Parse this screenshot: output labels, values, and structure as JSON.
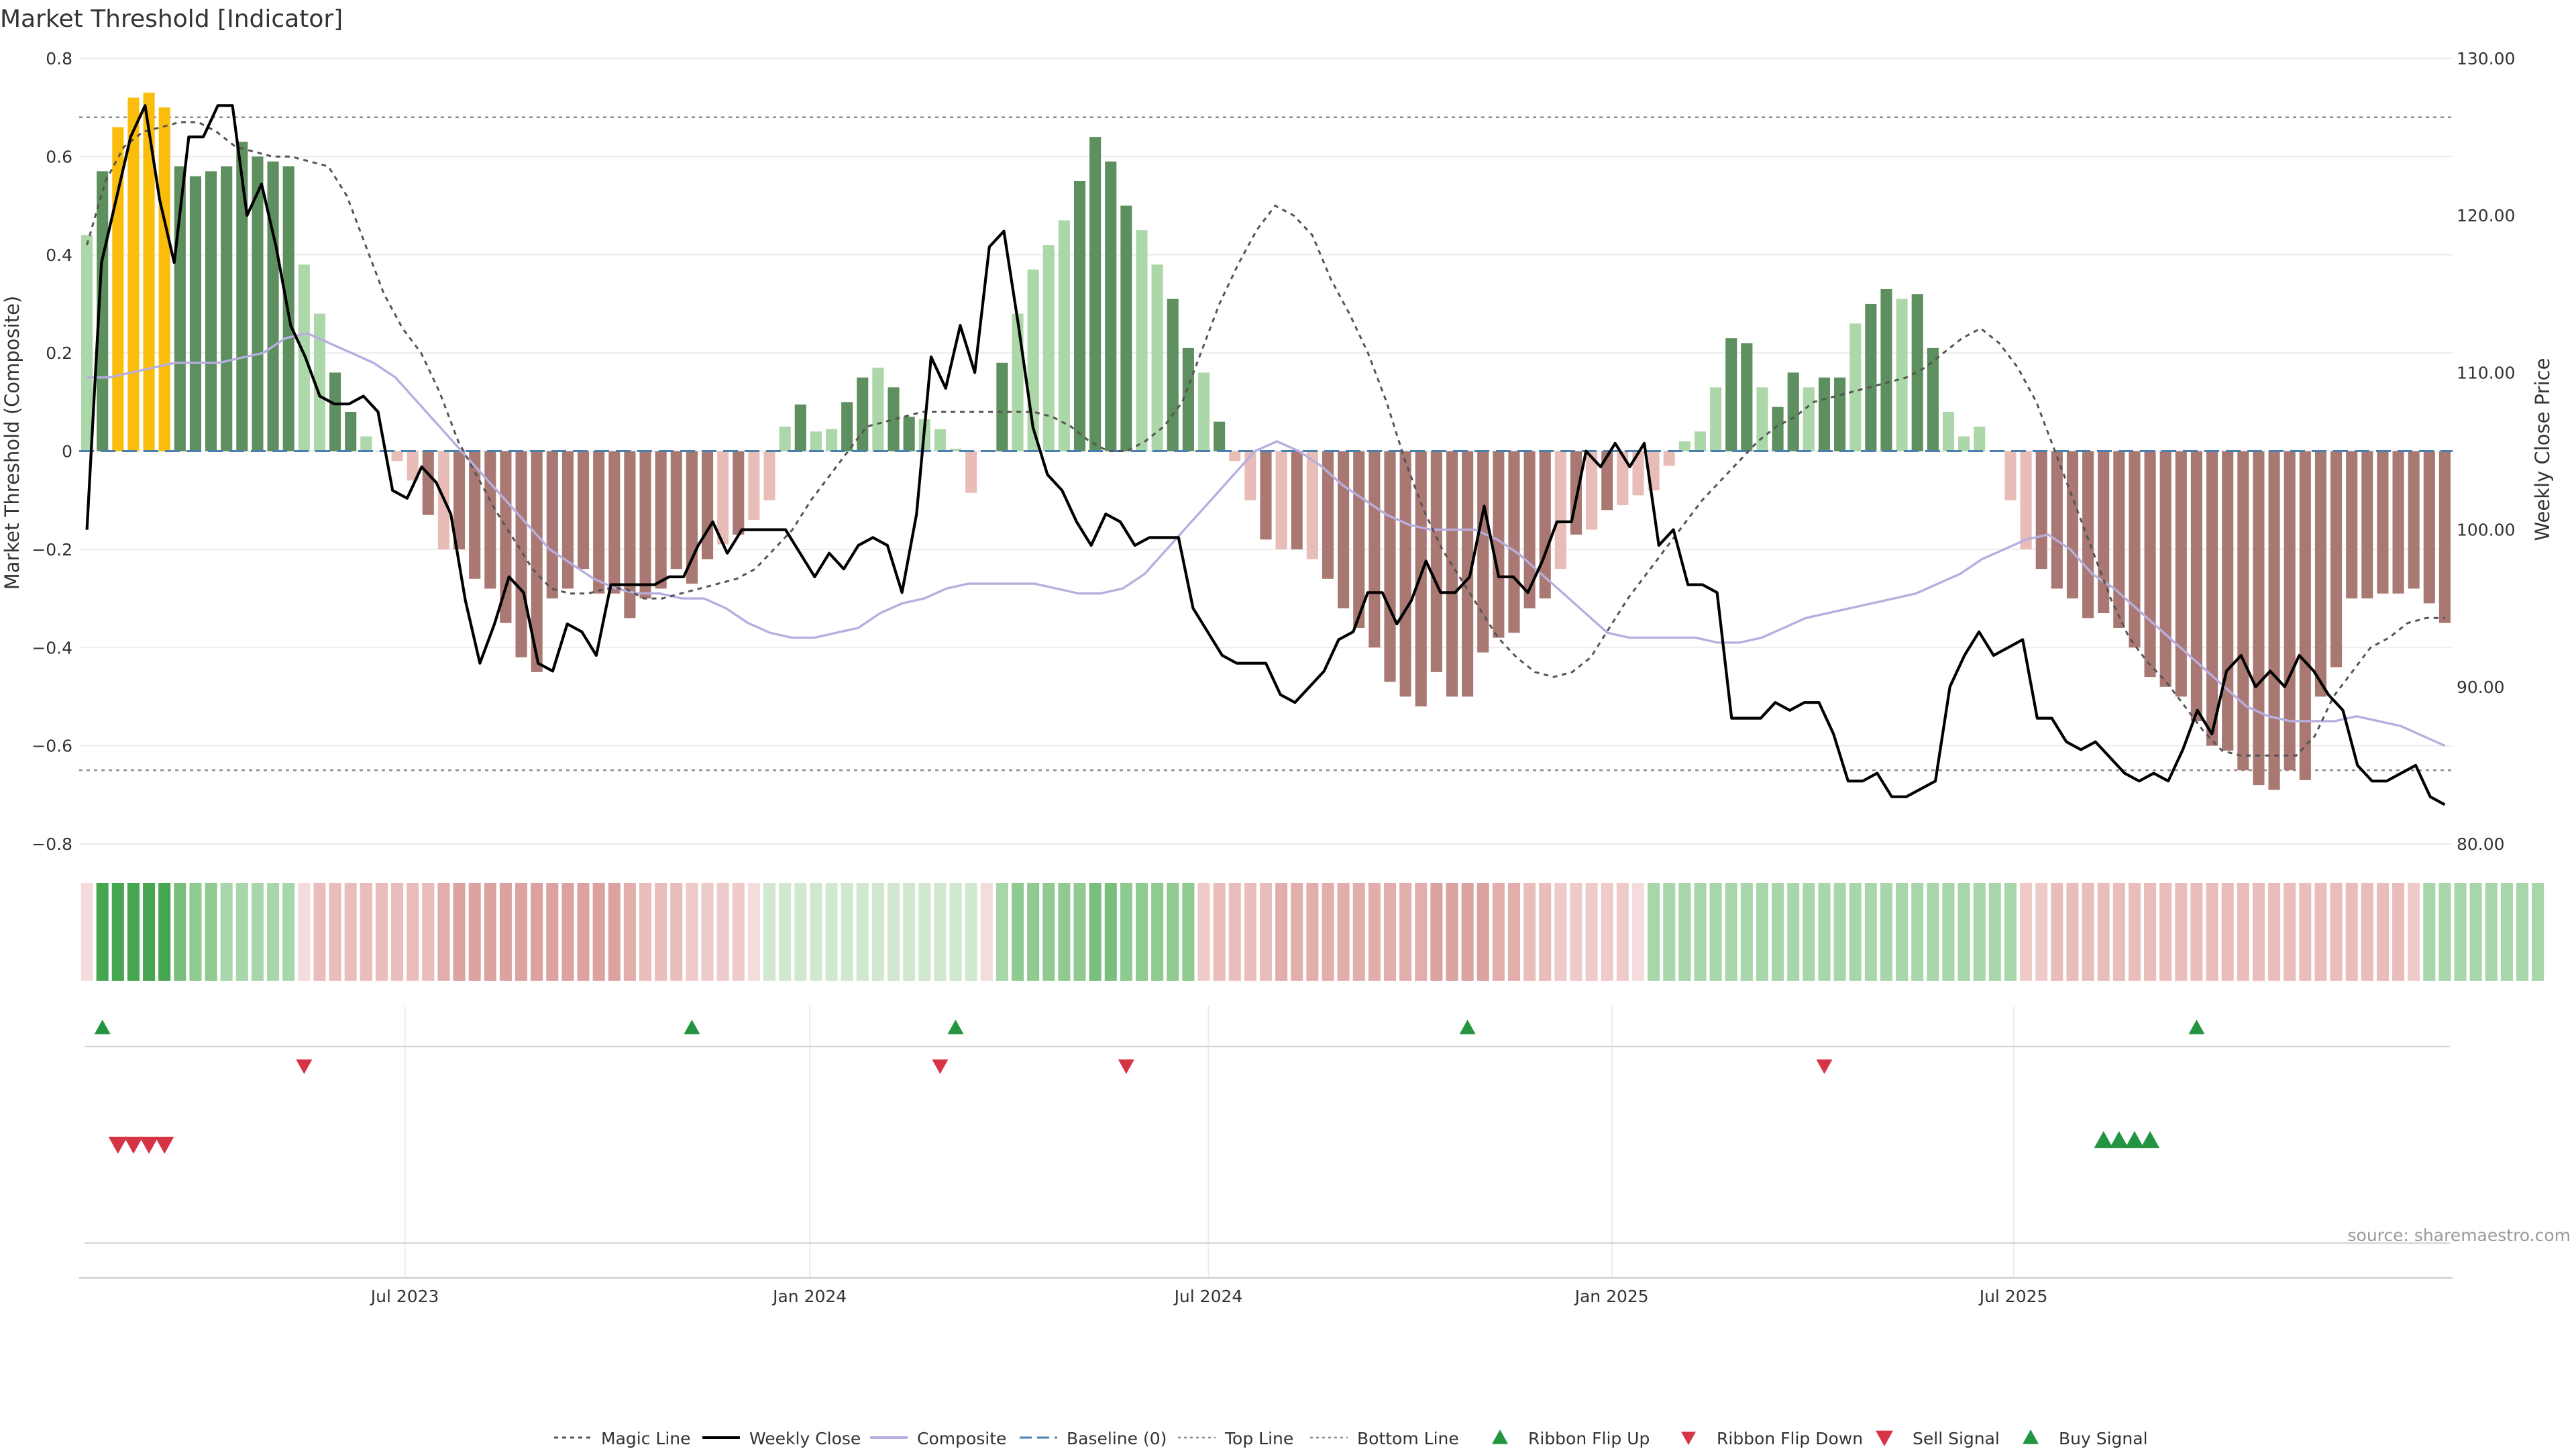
{
  "title": "Market Threshold [Indicator]",
  "source": "source: sharemaestro.com",
  "colors": {
    "bar_strong_pos": "#5e8f5e",
    "bar_weak_pos": "#acd7a8",
    "bar_strong_neg": "#a97873",
    "bar_weak_neg": "#e9bdb7",
    "bar_extreme": "#fbbd0c",
    "close": "#000000",
    "composite": "#b7aee0",
    "baseline": "#4a7fb0",
    "buy": "#23943f",
    "sell": "#d63345"
  },
  "chart_data": {
    "type": "bar+line",
    "title": "Market Threshold [Indicator]",
    "ylabel_left": "Market Threshold (Composite)",
    "ylabel_right": "Weekly Close Price",
    "ylim_left": [
      -0.8,
      0.8
    ],
    "ylim_right": [
      80,
      130
    ],
    "y_ticks_left": [
      "0.8",
      "0.6",
      "0.4",
      "0.2",
      "0",
      "−0.2",
      "−0.4",
      "−0.6",
      "−0.8"
    ],
    "y_ticks_right": [
      "130.00",
      "120.00",
      "110.00",
      "100.00",
      "90.00",
      "80.00"
    ],
    "x_ticks": [
      {
        "label": "Jul 2023",
        "week": 20.5
      },
      {
        "label": "Jan 2024",
        "week": 46.6
      },
      {
        "label": "Jul 2024",
        "week": 72.3
      },
      {
        "label": "Jan 2025",
        "week": 98.3
      },
      {
        "label": "Jul 2025",
        "week": 124.2
      }
    ],
    "threshold_top": 0.68,
    "threshold_bottom": -0.65,
    "baseline": 0,
    "bars": [
      0.44,
      0.57,
      0.66,
      0.72,
      0.73,
      0.7,
      0.58,
      0.56,
      0.57,
      0.58,
      0.63,
      0.6,
      0.59,
      0.58,
      0.38,
      0.28,
      0.16,
      0.08,
      0.03,
      0,
      -0.02,
      -0.06,
      -0.13,
      -0.2,
      -0.2,
      -0.26,
      -0.28,
      -0.35,
      -0.42,
      -0.45,
      -0.3,
      -0.28,
      -0.24,
      -0.29,
      -0.29,
      -0.34,
      -0.3,
      -0.28,
      -0.24,
      -0.27,
      -0.22,
      -0.19,
      -0.17,
      -0.14,
      -0.1,
      0.05,
      0.095,
      0.04,
      0.045,
      0.1,
      0.15,
      0.17,
      0.13,
      0.07,
      0.065,
      0.045,
      0.005,
      -0.085,
      0,
      0.18,
      0.28,
      0.37,
      0.42,
      0.47,
      0.55,
      0.64,
      0.59,
      0.5,
      0.45,
      0.38,
      0.31,
      0.21,
      0.16,
      0.06,
      -0.02,
      -0.1,
      -0.18,
      -0.2,
      -0.2,
      -0.22,
      -0.26,
      -0.32,
      -0.36,
      -0.4,
      -0.47,
      -0.5,
      -0.52,
      -0.45,
      -0.5,
      -0.5,
      -0.41,
      -0.38,
      -0.37,
      -0.32,
      -0.3,
      -0.24,
      -0.17,
      -0.16,
      -0.12,
      -0.11,
      -0.09,
      -0.08,
      -0.03,
      0.02,
      0.04,
      0.13,
      0.23,
      0.22,
      0.13,
      0.09,
      0.16,
      0.13,
      0.15,
      0.15,
      0.26,
      0.3,
      0.33,
      0.31,
      0.32,
      0.21,
      0.08,
      0.03,
      0.05,
      0,
      -0.1,
      -0.2,
      -0.24,
      -0.28,
      -0.3,
      -0.34,
      -0.33,
      -0.36,
      -0.4,
      -0.46,
      -0.48,
      -0.5,
      -0.55,
      -0.6,
      -0.61,
      -0.65,
      -0.68,
      -0.69,
      -0.65,
      -0.67,
      -0.5,
      -0.44,
      -0.3,
      -0.3,
      -0.29,
      -0.29,
      -0.28,
      -0.31,
      -0.35
    ],
    "weekly_close": [
      100,
      117,
      121,
      125,
      127,
      121,
      117,
      125,
      125,
      127,
      127,
      120,
      122,
      118,
      113,
      111,
      108.5,
      108,
      108,
      108.5,
      107.5,
      102.5,
      102,
      104,
      103,
      101,
      95.5,
      91.5,
      94,
      97,
      96,
      91.5,
      91,
      94,
      93.5,
      92,
      96.5,
      96.5,
      96.5,
      96.5,
      97,
      97,
      99,
      100.5,
      98.5,
      100,
      100,
      100,
      100,
      98.5,
      97,
      98.5,
      97.5,
      99,
      99.5,
      99,
      96,
      101,
      111,
      109,
      113,
      110,
      118,
      119,
      113,
      106.5,
      103.5,
      102.5,
      100.5,
      99,
      101,
      100.5,
      99,
      99.5,
      99.5,
      99.5,
      95,
      93.5,
      92,
      91.5,
      91.5,
      91.5,
      89.5,
      89,
      90,
      91,
      93,
      93.5,
      96,
      96,
      94,
      95.5,
      98,
      96,
      96,
      97,
      101.5,
      97,
      97,
      96,
      98,
      100.5,
      100.5,
      105,
      104,
      105.5,
      104,
      105.5,
      99,
      100,
      96.5,
      96.5,
      96,
      88,
      88,
      88,
      89,
      88.5,
      89,
      89,
      87,
      84,
      84,
      84.5,
      83,
      83,
      83.5,
      84,
      90,
      92,
      93.5,
      92,
      92.5,
      93,
      88,
      88,
      86.5,
      86,
      86.5,
      85.5,
      84.5,
      84,
      84.5,
      84,
      86,
      88.5,
      87,
      91,
      92,
      90,
      91,
      90,
      92,
      91,
      89.5,
      88.5,
      85,
      84,
      84,
      84.5,
      85,
      83,
      82.5
    ],
    "magic_line": [
      0.42,
      0.55,
      0.62,
      0.65,
      0.66,
      0.67,
      0.67,
      0.65,
      0.62,
      0.61,
      0.6,
      0.6,
      0.59,
      0.58,
      0.52,
      0.42,
      0.32,
      0.25,
      0.2,
      0.12,
      0.02,
      -0.05,
      -0.12,
      -0.18,
      -0.24,
      -0.28,
      -0.29,
      -0.29,
      -0.28,
      -0.28,
      -0.3,
      -0.3,
      -0.29,
      -0.28,
      -0.27,
      -0.26,
      -0.24,
      -0.2,
      -0.16,
      -0.1,
      -0.05,
      0,
      0.05,
      0.06,
      0.07,
      0.08,
      0.08,
      0.08,
      0.08,
      0.08,
      0.08,
      0.08,
      0.07,
      0.05,
      0.02,
      0,
      0,
      0.02,
      0.05,
      0.1,
      0.2,
      0.3,
      0.38,
      0.45,
      0.5,
      0.48,
      0.44,
      0.35,
      0.28,
      0.2,
      0.1,
      -0.02,
      -0.12,
      -0.2,
      -0.26,
      -0.32,
      -0.38,
      -0.42,
      -0.45,
      -0.46,
      -0.45,
      -0.42,
      -0.36,
      -0.3,
      -0.25,
      -0.2,
      -0.15,
      -0.1,
      -0.06,
      -0.02,
      0.02,
      0.05,
      0.07,
      0.1,
      0.11,
      0.12,
      0.13,
      0.14,
      0.15,
      0.17,
      0.2,
      0.23,
      0.25,
      0.22,
      0.17,
      0.1,
      0,
      -0.1,
      -0.2,
      -0.3,
      -0.38,
      -0.43,
      -0.47,
      -0.52,
      -0.57,
      -0.61,
      -0.62,
      -0.62,
      -0.62,
      -0.62,
      -0.58,
      -0.5,
      -0.45,
      -0.4,
      -0.38,
      -0.35,
      -0.34,
      -0.34
    ],
    "composite": [
      0.15,
      0.15,
      0.16,
      0.17,
      0.18,
      0.18,
      0.18,
      0.19,
      0.2,
      0.23,
      0.24,
      0.22,
      0.2,
      0.18,
      0.15,
      0.1,
      0.05,
      0,
      -0.05,
      -0.1,
      -0.15,
      -0.2,
      -0.23,
      -0.26,
      -0.28,
      -0.29,
      -0.29,
      -0.3,
      -0.3,
      -0.32,
      -0.35,
      -0.37,
      -0.38,
      -0.38,
      -0.37,
      -0.36,
      -0.33,
      -0.31,
      -0.3,
      -0.28,
      -0.27,
      -0.27,
      -0.27,
      -0.27,
      -0.28,
      -0.29,
      -0.29,
      -0.28,
      -0.25,
      -0.2,
      -0.15,
      -0.1,
      -0.05,
      0,
      0.02,
      0,
      -0.03,
      -0.07,
      -0.1,
      -0.13,
      -0.15,
      -0.16,
      -0.16,
      -0.16,
      -0.18,
      -0.21,
      -0.25,
      -0.29,
      -0.33,
      -0.37,
      -0.38,
      -0.38,
      -0.38,
      -0.38,
      -0.39,
      -0.39,
      -0.38,
      -0.36,
      -0.34,
      -0.33,
      -0.32,
      -0.31,
      -0.3,
      -0.29,
      -0.27,
      -0.25,
      -0.22,
      -0.2,
      -0.18,
      -0.17,
      -0.2,
      -0.25,
      -0.28,
      -0.32,
      -0.36,
      -0.4,
      -0.44,
      -0.48,
      -0.52,
      -0.54,
      -0.55,
      -0.55,
      -0.55,
      -0.54,
      -0.55,
      -0.56,
      -0.58,
      -0.6
    ],
    "ribbon": [
      -0.15,
      0.95,
      0.95,
      0.95,
      0.95,
      0.95,
      0.65,
      0.55,
      0.45,
      0.4,
      0.35,
      0.35,
      0.35,
      0.35,
      -0.2,
      -0.35,
      -0.35,
      -0.35,
      -0.35,
      -0.35,
      -0.35,
      -0.35,
      -0.35,
      -0.45,
      -0.55,
      -0.55,
      -0.55,
      -0.55,
      -0.55,
      -0.55,
      -0.55,
      -0.55,
      -0.55,
      -0.55,
      -0.55,
      -0.45,
      -0.35,
      -0.35,
      -0.35,
      -0.25,
      -0.25,
      -0.25,
      -0.25,
      -0.15,
      0.25,
      0.3,
      0.3,
      0.3,
      0.3,
      0.3,
      0.3,
      0.3,
      0.3,
      0.3,
      0.3,
      0.2,
      0.2,
      0.2,
      -0.15,
      0.35,
      0.45,
      0.45,
      0.5,
      0.55,
      0.6,
      0.65,
      0.7,
      0.6,
      0.5,
      0.45,
      0.45,
      0.45,
      -0.3,
      -0.35,
      -0.35,
      -0.35,
      -0.4,
      -0.45,
      -0.5,
      -0.5,
      -0.5,
      -0.5,
      -0.5,
      -0.5,
      -0.5,
      -0.5,
      -0.5,
      -0.55,
      -0.55,
      -0.55,
      -0.55,
      -0.5,
      -0.45,
      -0.4,
      -0.35,
      -0.3,
      -0.3,
      -0.3,
      -0.3,
      -0.25,
      -0.2,
      0.35,
      0.35,
      0.35,
      0.35,
      0.35,
      0.35,
      0.35,
      0.35,
      0.35,
      0.35,
      0.35,
      0.35,
      0.35,
      0.35,
      0.35,
      0.35,
      0.35,
      0.35,
      0.35,
      0.35,
      0.35,
      0.35,
      0.35,
      0.35,
      -0.25,
      -0.3,
      -0.35,
      -0.35,
      -0.35,
      -0.35,
      -0.35,
      -0.35,
      -0.35,
      -0.35,
      -0.35,
      -0.35,
      -0.35,
      -0.35,
      -0.35,
      -0.4,
      -0.4,
      -0.4,
      -0.4,
      -0.4,
      -0.4,
      -0.4,
      -0.35,
      -0.35,
      -0.35,
      -0.25,
      0.35,
      0.35,
      0.35,
      0.35,
      0.35,
      0.35,
      0.35,
      0.35
    ],
    "ribbon_flip_up": [
      1,
      39,
      56,
      89,
      136
    ],
    "ribbon_flip_down": [
      14,
      55,
      67,
      112
    ],
    "sell_signals": [
      2,
      3,
      4,
      5
    ],
    "buy_signals": [
      130,
      131,
      132,
      133
    ],
    "legend": [
      {
        "label": "Magic Line",
        "kind": "dotted"
      },
      {
        "label": "Weekly Close",
        "kind": "solid"
      },
      {
        "label": "Composite",
        "kind": "composite"
      },
      {
        "label": "Baseline (0)",
        "kind": "dashed"
      },
      {
        "label": "Top Line",
        "kind": "fine-dotted"
      },
      {
        "label": "Bottom Line",
        "kind": "fine-dotted"
      },
      {
        "label": "Ribbon Flip Up",
        "kind": "tri-up-green"
      },
      {
        "label": "Ribbon Flip Down",
        "kind": "tri-down-red"
      },
      {
        "label": "Sell Signal",
        "kind": "tri-down-pink"
      },
      {
        "label": "Buy Signal",
        "kind": "tri-up-green"
      }
    ]
  }
}
